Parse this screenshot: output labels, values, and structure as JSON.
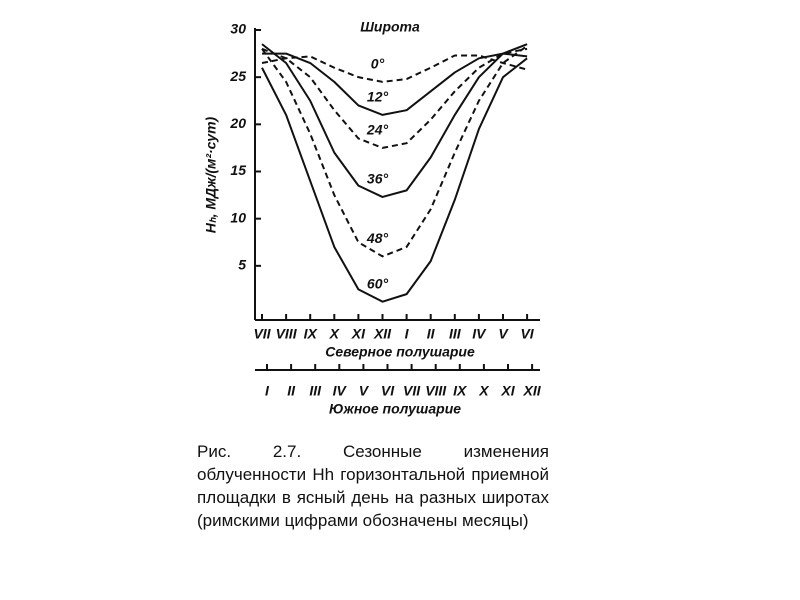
{
  "chart_data": {
    "type": "line",
    "legend_title": "Широта",
    "ylabel": "Hₕ, МДж/(м²·сут)",
    "xlabel": "Северное полушарие",
    "x2label": "Южное полушарие",
    "categories": [
      "VII",
      "VIII",
      "IX",
      "X",
      "XI",
      "XII",
      "I",
      "II",
      "III",
      "IV",
      "V",
      "VI"
    ],
    "categories2": [
      "I",
      "II",
      "III",
      "IV",
      "V",
      "VI",
      "VII",
      "VIII",
      "IX",
      "X",
      "XI",
      "XII"
    ],
    "ylim": [
      0,
      30
    ],
    "yticks": [
      5,
      10,
      15,
      20,
      25,
      30
    ],
    "series": [
      {
        "name": "0°",
        "color": "#111111",
        "style": "dashed",
        "values": [
          26.5,
          27,
          27.2,
          26,
          25,
          24.5,
          24.8,
          26,
          27.3,
          27.3,
          26.5,
          25.8
        ]
      },
      {
        "name": "12°",
        "color": "#111111",
        "style": "solid",
        "values": [
          27.5,
          27.5,
          26.5,
          24.5,
          22,
          21,
          21.5,
          23.5,
          25.5,
          27,
          27.5,
          27.2
        ]
      },
      {
        "name": "24°",
        "color": "#111111",
        "style": "dashed",
        "values": [
          28,
          27,
          25,
          21.5,
          18.5,
          17.5,
          18,
          20.5,
          23.5,
          26,
          27.5,
          28
        ]
      },
      {
        "name": "36°",
        "color": "#111111",
        "style": "solid",
        "values": [
          28.5,
          26.5,
          22.5,
          17,
          13.5,
          12.3,
          13,
          16.5,
          21,
          25,
          27.5,
          28.5
        ]
      },
      {
        "name": "48°",
        "color": "#111111",
        "style": "dashed",
        "values": [
          28,
          24.5,
          19,
          12.5,
          7.5,
          6,
          7,
          11,
          17,
          22.5,
          26.5,
          28.3
        ]
      },
      {
        "name": "60°",
        "color": "#111111",
        "style": "solid",
        "values": [
          26,
          21,
          14,
          7,
          2.5,
          1.2,
          2,
          5.5,
          12,
          19.5,
          25,
          27
        ]
      }
    ]
  },
  "caption": "Рис. 2.7. Сезонные изменения облученности Hh горизонтальной приемной площадки в ясный день на разных широтах (римскими цифрами обозначены месяцы)"
}
